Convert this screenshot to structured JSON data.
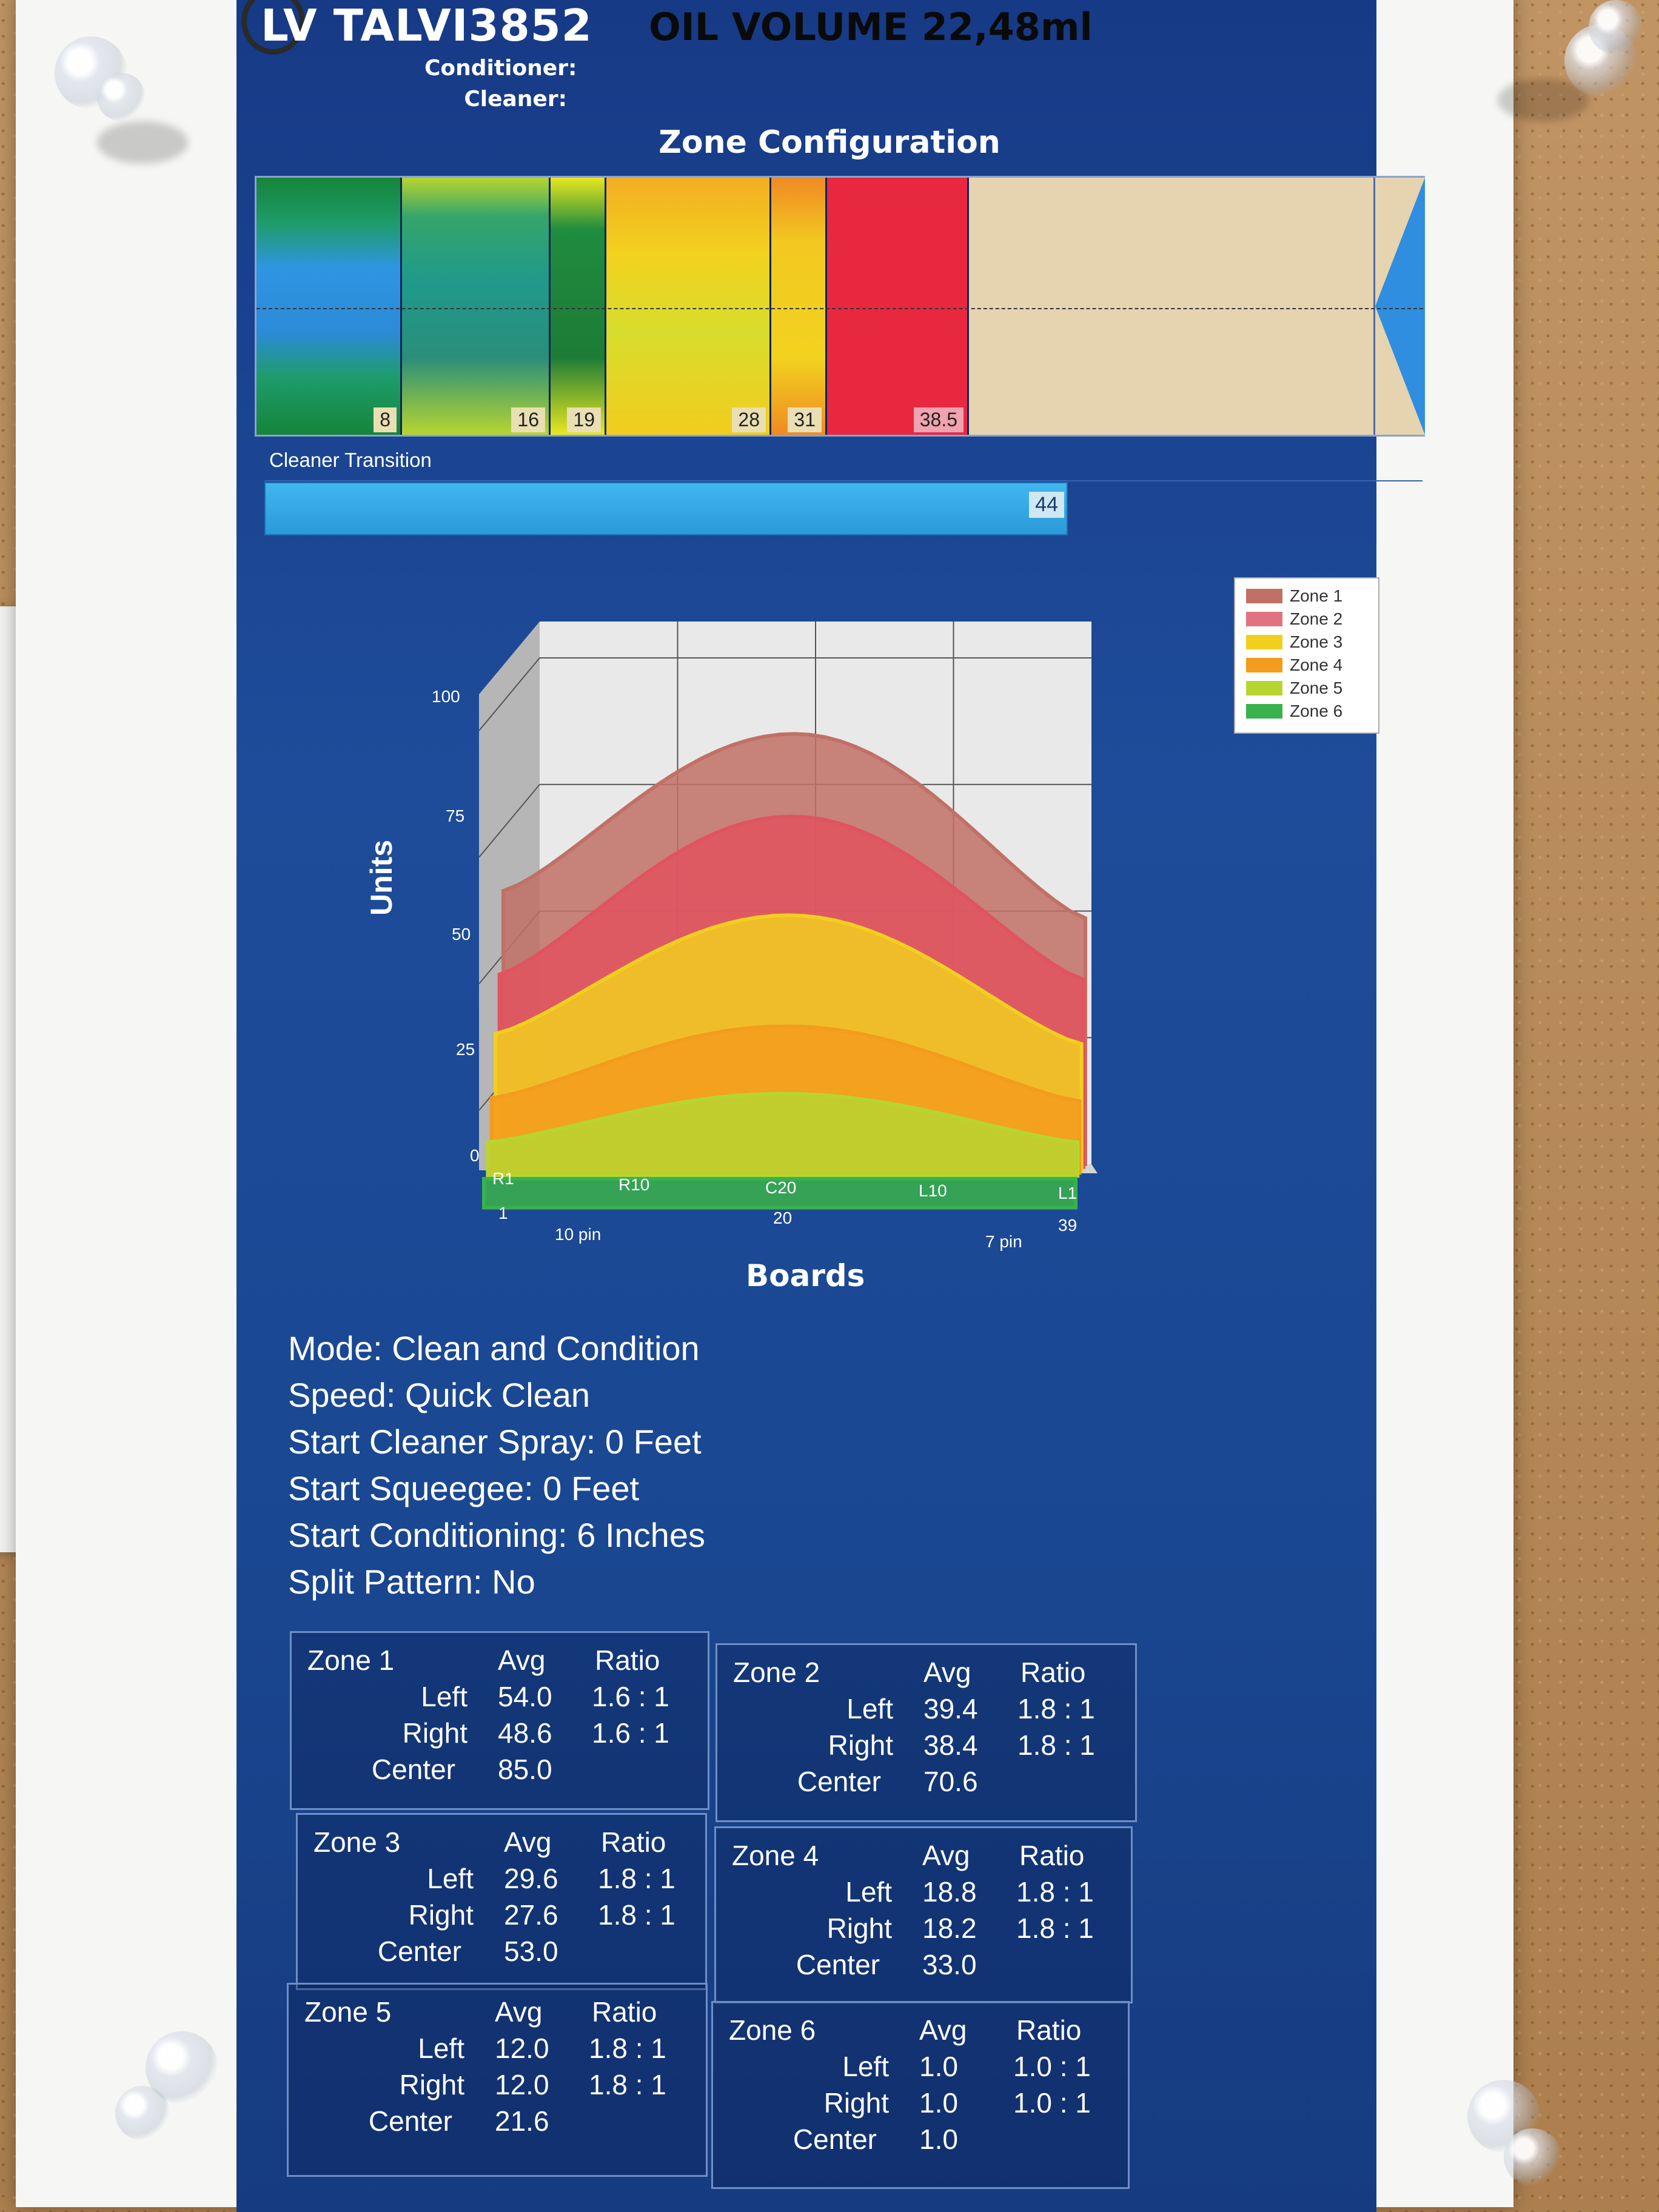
{
  "header": {
    "title": "LV TALVI3852",
    "oil_volume": "OIL VOLUME 22,48ml",
    "conditioner_label": "Conditioner:",
    "cleaner_label": "Cleaner:"
  },
  "zone_configuration": {
    "title": "Zone Configuration",
    "markers": [
      "8",
      "16",
      "19",
      "28",
      "31",
      "38.5"
    ]
  },
  "cleaner_transition": {
    "label": "Cleaner Transition",
    "value": "44"
  },
  "chart_data": {
    "type": "area",
    "ylabel": "Units",
    "xlabel": "Boards",
    "ylim": [
      0,
      100
    ],
    "y_ticks": [
      "0",
      "25",
      "50",
      "75",
      "100"
    ],
    "x_ticks": [
      "R1",
      "R10",
      "C20",
      "L10",
      "L1"
    ],
    "x_sub_ticks": [
      "1",
      "20",
      "39"
    ],
    "x_annotations": [
      "10 pin",
      "7 pin"
    ],
    "legend": [
      "Zone 1",
      "Zone 2",
      "Zone 3",
      "Zone 4",
      "Zone 5",
      "Zone 6"
    ],
    "colors": [
      "#c17066",
      "#e0535f",
      "#f2cf1f",
      "#f39c1d",
      "#b7d530",
      "#39b24b"
    ],
    "series": [
      {
        "name": "Zone 1",
        "left": 54.0,
        "center": 85.0,
        "right": 48.6
      },
      {
        "name": "Zone 2",
        "left": 39.4,
        "center": 70.6,
        "right": 38.4
      },
      {
        "name": "Zone 3",
        "left": 29.6,
        "center": 53.0,
        "right": 27.6
      },
      {
        "name": "Zone 4",
        "left": 18.8,
        "center": 33.0,
        "right": 18.2
      },
      {
        "name": "Zone 5",
        "left": 12.0,
        "center": 21.6,
        "right": 12.0
      },
      {
        "name": "Zone 6",
        "left": 1.0,
        "center": 1.0,
        "right": 1.0
      }
    ]
  },
  "settings": [
    "Mode: Clean and Condition",
    "Speed: Quick Clean",
    "Start Cleaner Spray: 0 Feet",
    "Start Squeegee: 0 Feet",
    "Start Conditioning: 6 Inches",
    "Split Pattern: No"
  ],
  "zone_tables": {
    "avg_header": "Avg",
    "ratio_header": "Ratio",
    "row_labels": [
      "Left",
      "Right",
      "Center"
    ],
    "zones": [
      {
        "name": "Zone 1",
        "left_avg": "54.0",
        "left_ratio": "1.6 : 1",
        "right_avg": "48.6",
        "right_ratio": "1.6 : 1",
        "center_avg": "85.0"
      },
      {
        "name": "Zone 2",
        "left_avg": "39.4",
        "left_ratio": "1.8 : 1",
        "right_avg": "38.4",
        "right_ratio": "1.8 : 1",
        "center_avg": "70.6"
      },
      {
        "name": "Zone 3",
        "left_avg": "29.6",
        "left_ratio": "1.8 : 1",
        "right_avg": "27.6",
        "right_ratio": "1.8 : 1",
        "center_avg": "53.0"
      },
      {
        "name": "Zone 4",
        "left_avg": "18.8",
        "left_ratio": "1.8 : 1",
        "right_avg": "18.2",
        "right_ratio": "1.8 : 1",
        "center_avg": "33.0"
      },
      {
        "name": "Zone 5",
        "left_avg": "12.0",
        "left_ratio": "1.8 : 1",
        "right_avg": "12.0",
        "right_ratio": "1.8 : 1",
        "center_avg": "21.6"
      },
      {
        "name": "Zone 6",
        "left_avg": "1.0",
        "left_ratio": "1.0 : 1",
        "right_avg": "1.0",
        "right_ratio": "1.0 : 1",
        "center_avg": "1.0"
      }
    ]
  }
}
